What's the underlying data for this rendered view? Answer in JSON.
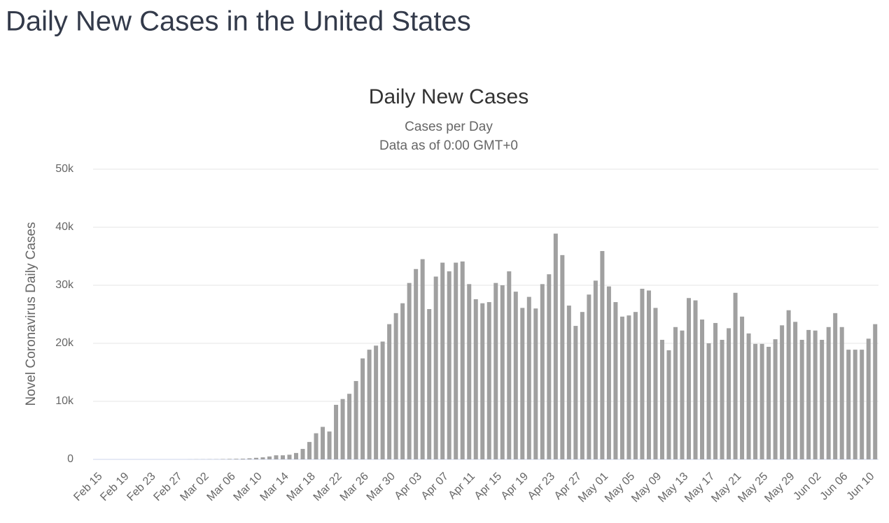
{
  "page_title": "Daily New Cases in the United States",
  "chart_data": {
    "type": "bar",
    "title": "Daily New Cases",
    "subtitle": [
      "Cases per Day",
      "Data as of 0:00 GMT+0"
    ],
    "y_label": "Novel Coronavirus Daily Cases",
    "color": "#a0a0a0",
    "grid": true,
    "ylim": [
      0,
      50000
    ],
    "yticks": [
      0,
      {
        "value": 10000,
        "label": "10k"
      },
      {
        "value": 20000,
        "label": "20k"
      },
      {
        "value": 30000,
        "label": "30k"
      },
      {
        "value": 40000,
        "label": "40k"
      },
      {
        "value": 50000,
        "label": "50k"
      }
    ],
    "categories": [
      "Feb 15",
      null,
      null,
      null,
      "Feb 19",
      null,
      null,
      null,
      "Feb 23",
      null,
      null,
      null,
      "Feb 27",
      null,
      null,
      null,
      "Mar 02",
      null,
      null,
      null,
      "Mar 06",
      null,
      null,
      null,
      "Mar 10",
      null,
      null,
      null,
      "Mar 14",
      null,
      null,
      null,
      "Mar 18",
      null,
      null,
      null,
      "Mar 22",
      null,
      null,
      null,
      "Mar 26",
      null,
      null,
      null,
      "Mar 30",
      null,
      null,
      null,
      "Apr 03",
      null,
      null,
      null,
      "Apr 07",
      null,
      null,
      null,
      "Apr 11",
      null,
      null,
      null,
      "Apr 15",
      null,
      null,
      null,
      "Apr 19",
      null,
      null,
      null,
      "Apr 23",
      null,
      null,
      null,
      "Apr 27",
      null,
      null,
      null,
      "May 01",
      null,
      null,
      null,
      "May 05",
      null,
      null,
      null,
      "May 09",
      null,
      null,
      null,
      "May 13",
      null,
      null,
      null,
      "May 17",
      null,
      null,
      null,
      "May 21",
      null,
      null,
      null,
      "May 25",
      null,
      null,
      null,
      "May 29",
      null,
      null,
      null,
      "Jun 02",
      null,
      null,
      null,
      "Jun 06",
      null,
      null,
      null,
      "Jun 10",
      null
    ],
    "values": [
      0,
      0,
      0,
      0,
      0,
      0,
      0,
      0,
      0,
      0,
      0,
      0,
      0,
      0,
      10,
      20,
      20,
      30,
      30,
      60,
      80,
      100,
      120,
      180,
      270,
      350,
      500,
      700,
      700,
      800,
      1100,
      1800,
      3000,
      4500,
      5600,
      4800,
      9400,
      10400,
      11300,
      13500,
      17400,
      18900,
      19600,
      20300,
      23300,
      25200,
      26900,
      30400,
      32800,
      34500,
      25900,
      31500,
      33900,
      32400,
      33900,
      34100,
      30200,
      27600,
      26900,
      27100,
      30400,
      30000,
      32400,
      28900,
      26100,
      28000,
      26000,
      30200,
      31900,
      38900,
      35200,
      26500,
      23000,
      25400,
      28400,
      30800,
      35900,
      29800,
      27100,
      24600,
      24800,
      25400,
      29400,
      29100,
      26100,
      20600,
      18800,
      22800,
      22200,
      27800,
      27400,
      24100,
      20000,
      23500,
      20600,
      22600,
      28700,
      24600,
      21700,
      19900,
      19900,
      19400,
      20700,
      23100,
      25700,
      23700,
      20600,
      22300,
      22200,
      20600,
      22800,
      25200,
      22800,
      18900,
      18900,
      18900,
      20800,
      23300
    ]
  }
}
